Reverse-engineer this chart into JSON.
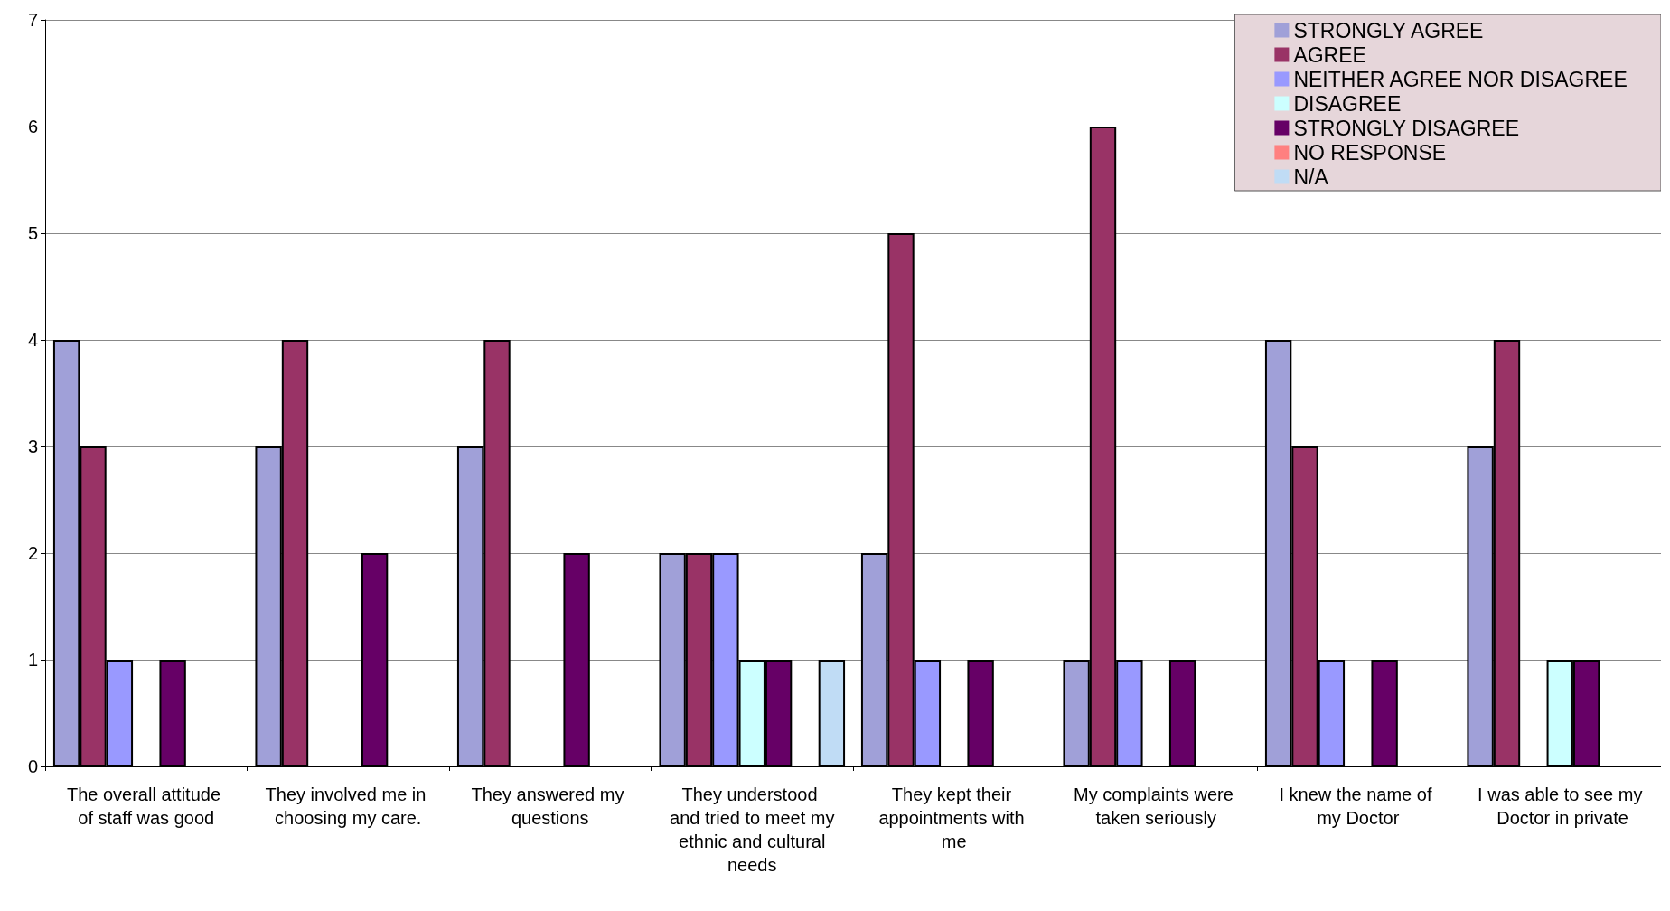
{
  "chart_data": {
    "type": "bar",
    "categories": [
      "The overall attitude of staff was good",
      "They involved me in choosing my care.",
      "They answered my questions",
      "They understood and tried to meet my ethnic and cultural needs",
      "They kept their appointments with me",
      "My complaints were taken seriously",
      "I knew the name of my Doctor",
      "I was able to see my Doctor in private"
    ],
    "series": [
      {
        "name": "STRONGLY AGREE",
        "color": "#a0a0d8",
        "values": [
          4,
          3,
          3,
          2,
          2,
          1,
          4,
          3
        ]
      },
      {
        "name": "AGREE",
        "color": "#993366",
        "values": [
          3,
          4,
          4,
          2,
          5,
          6,
          3,
          4
        ]
      },
      {
        "name": "NEITHER AGREE NOR DISAGREE",
        "color": "#9999ff",
        "values": [
          1,
          0,
          0,
          2,
          1,
          1,
          1,
          0
        ]
      },
      {
        "name": "DISAGREE",
        "color": "#ccffff",
        "values": [
          0,
          0,
          0,
          1,
          0,
          0,
          0,
          1
        ]
      },
      {
        "name": "STRONGLY DISAGREE",
        "color": "#660066",
        "values": [
          1,
          2,
          2,
          1,
          1,
          1,
          1,
          1
        ]
      },
      {
        "name": "NO RESPONSE",
        "color": "#ff8080",
        "values": [
          0,
          0,
          0,
          0,
          0,
          0,
          0,
          0
        ]
      },
      {
        "name": "N/A",
        "color": "#c0dcf5",
        "values": [
          0,
          0,
          0,
          1,
          0,
          0,
          0,
          0
        ]
      }
    ],
    "ylim": [
      0,
      7
    ],
    "yticks": [
      0,
      1,
      2,
      3,
      4,
      5,
      6,
      7
    ],
    "grid": "y",
    "legend": "top right"
  }
}
